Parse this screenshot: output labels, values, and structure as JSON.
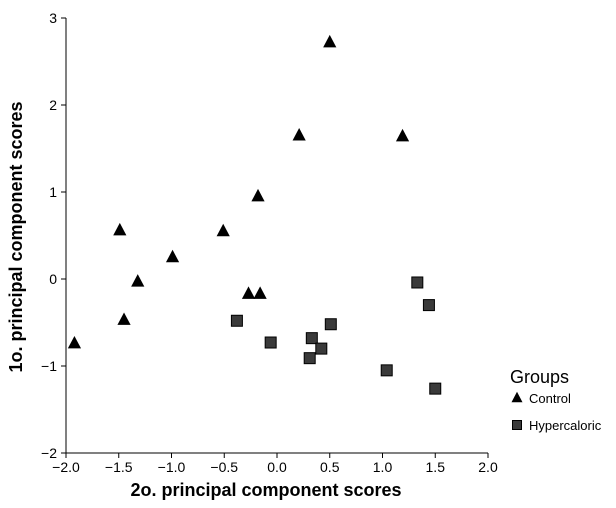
{
  "chart_data": {
    "type": "scatter",
    "xlabel": "2o. principal component scores",
    "ylabel": "1o. principal component scores",
    "xlim": [
      -2.0,
      2.0
    ],
    "ylim": [
      -2,
      3
    ],
    "x_ticks": [
      "−2.0",
      "−1.5",
      "−1.0",
      "−0.5",
      "0.0",
      "0.5",
      "1.0",
      "1.5",
      "2.0"
    ],
    "y_ticks": [
      "−2",
      "−1",
      "0",
      "1",
      "2",
      "3"
    ],
    "x_tick_values": [
      -2.0,
      -1.5,
      -1.0,
      -0.5,
      0.0,
      0.5,
      1.0,
      1.5,
      2.0
    ],
    "y_tick_values": [
      -2,
      -1,
      0,
      1,
      2,
      3
    ],
    "grid": false,
    "legend": {
      "title": "Groups",
      "placement": "right-outside"
    },
    "series": [
      {
        "name": "Control",
        "marker": "triangle",
        "color": "#000000",
        "points": [
          {
            "x": -1.92,
            "y": -0.74
          },
          {
            "x": -1.49,
            "y": 0.56
          },
          {
            "x": -1.45,
            "y": -0.47
          },
          {
            "x": -1.32,
            "y": -0.03
          },
          {
            "x": -0.99,
            "y": 0.25
          },
          {
            "x": -0.51,
            "y": 0.55
          },
          {
            "x": -0.27,
            "y": -0.17
          },
          {
            "x": -0.18,
            "y": 0.95
          },
          {
            "x": -0.16,
            "y": -0.17
          },
          {
            "x": 0.21,
            "y": 1.65
          },
          {
            "x": 0.5,
            "y": 2.72
          },
          {
            "x": 1.19,
            "y": 1.64
          }
        ]
      },
      {
        "name": "Hypercaloric",
        "marker": "square",
        "color": "#3a3a3a",
        "points": [
          {
            "x": -0.38,
            "y": -0.48
          },
          {
            "x": -0.06,
            "y": -0.73
          },
          {
            "x": 0.31,
            "y": -0.91
          },
          {
            "x": 0.33,
            "y": -0.68
          },
          {
            "x": 0.42,
            "y": -0.8
          },
          {
            "x": 0.51,
            "y": -0.52
          },
          {
            "x": 1.04,
            "y": -1.05
          },
          {
            "x": 1.33,
            "y": -0.04
          },
          {
            "x": 1.44,
            "y": -0.3
          },
          {
            "x": 1.5,
            "y": -1.26
          }
        ]
      }
    ]
  }
}
